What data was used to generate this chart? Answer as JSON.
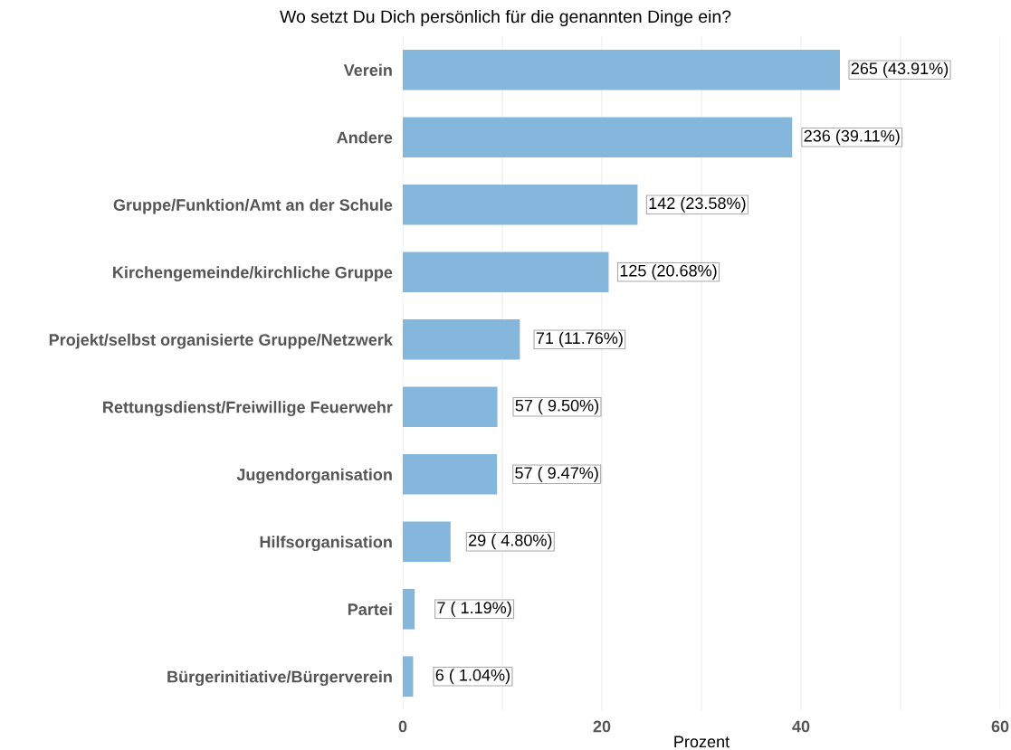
{
  "chart_data": {
    "type": "bar",
    "orientation": "horizontal",
    "title": "Wo setzt Du Dich persönlich für die genannten Dinge ein?",
    "xlabel": "Prozent",
    "categories": [
      "Verein",
      "Andere",
      "Gruppe/Funktion/Amt an der Schule",
      "Kirchengemeinde/kirchliche Gruppe",
      "Projekt/selbst organisierte Gruppe/Netzwerk",
      "Rettungsdienst/Freiwillige Feuerwehr",
      "Jugendorganisation",
      "Hilfsorganisation",
      "Partei",
      "Bürgerinitiative/Bürgerverein"
    ],
    "values": [
      43.91,
      39.11,
      23.58,
      20.68,
      11.76,
      9.5,
      9.47,
      4.8,
      1.19,
      1.04
    ],
    "value_labels": [
      "265 (43.91%)",
      "236 (39.11%)",
      "142 (23.58%)",
      "125 (20.68%)",
      "71 (11.76%)",
      "57 ( 9.50%)",
      "57 ( 9.47%)",
      "29 ( 4.80%)",
      "7 ( 1.19%)",
      "6 ( 1.04%)"
    ],
    "color": "#85b7dd",
    "xlim": [
      0,
      60
    ],
    "xticks": [
      0,
      20,
      40,
      60
    ],
    "grid": "x"
  }
}
